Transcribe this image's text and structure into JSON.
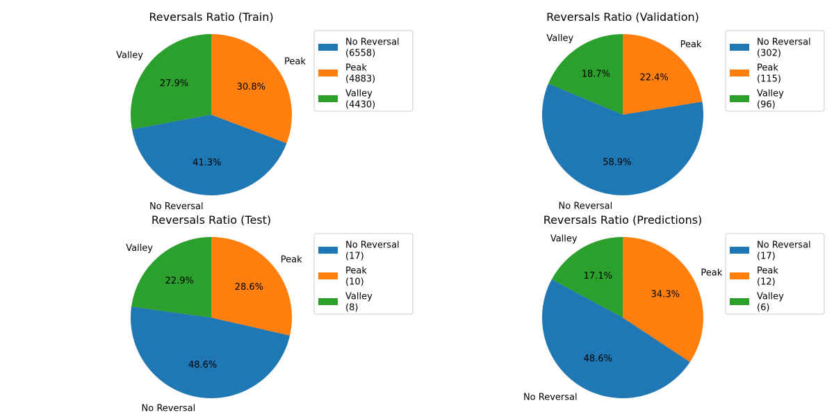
{
  "colors": {
    "No Reversal": "#1f77b4",
    "Peak": "#ff7f0e",
    "Valley": "#2ca02c"
  },
  "chart_data": [
    {
      "type": "pie",
      "title": "Reversals Ratio (Train)",
      "start_angle_deg": 90,
      "slices": [
        {
          "name": "Valley",
          "value": 4430,
          "pct_label": "27.9%",
          "legend": [
            "Valley",
            "(4430)"
          ]
        },
        {
          "name": "No Reversal",
          "value": 6558,
          "pct_label": "41.3%",
          "legend": [
            "No Reversal",
            "(6558)"
          ]
        },
        {
          "name": "Peak",
          "value": 4883,
          "pct_label": "30.8%",
          "legend": [
            "Peak",
            "(4883)"
          ]
        }
      ],
      "legend_order": [
        "No Reversal",
        "Peak",
        "Valley"
      ],
      "legend_placement": "right"
    },
    {
      "type": "pie",
      "title": "Reversals Ratio (Validation)",
      "start_angle_deg": 90,
      "slices": [
        {
          "name": "Valley",
          "value": 96,
          "pct_label": "18.7%",
          "legend": [
            "Valley",
            "(96)"
          ]
        },
        {
          "name": "No Reversal",
          "value": 302,
          "pct_label": "58.9%",
          "legend": [
            "No Reversal",
            "(302)"
          ]
        },
        {
          "name": "Peak",
          "value": 115,
          "pct_label": "22.4%",
          "legend": [
            "Peak",
            "(115)"
          ]
        }
      ],
      "legend_order": [
        "No Reversal",
        "Peak",
        "Valley"
      ],
      "legend_placement": "right"
    },
    {
      "type": "pie",
      "title": "Reversals Ratio (Test)",
      "start_angle_deg": 90,
      "slices": [
        {
          "name": "Valley",
          "value": 8,
          "pct_label": "22.9%",
          "legend": [
            "Valley",
            "(8)"
          ]
        },
        {
          "name": "No Reversal",
          "value": 17,
          "pct_label": "48.6%",
          "legend": [
            "No Reversal",
            "(17)"
          ]
        },
        {
          "name": "Peak",
          "value": 10,
          "pct_label": "28.6%",
          "legend": [
            "Peak",
            "(10)"
          ]
        }
      ],
      "legend_order": [
        "No Reversal",
        "Peak",
        "Valley"
      ],
      "legend_placement": "right"
    },
    {
      "type": "pie",
      "title": "Reversals Ratio (Predictions)",
      "start_angle_deg": 90,
      "slices": [
        {
          "name": "Valley",
          "value": 6,
          "pct_label": "17.1%",
          "legend": [
            "Valley",
            "(6)"
          ]
        },
        {
          "name": "No Reversal",
          "value": 17,
          "pct_label": "48.6%",
          "legend": [
            "No Reversal",
            "(17)"
          ]
        },
        {
          "name": "Peak",
          "value": 12,
          "pct_label": "34.3%",
          "legend": [
            "Peak",
            "(12)"
          ]
        }
      ],
      "legend_order": [
        "No Reversal",
        "Peak",
        "Valley"
      ],
      "legend_placement": "right"
    }
  ]
}
